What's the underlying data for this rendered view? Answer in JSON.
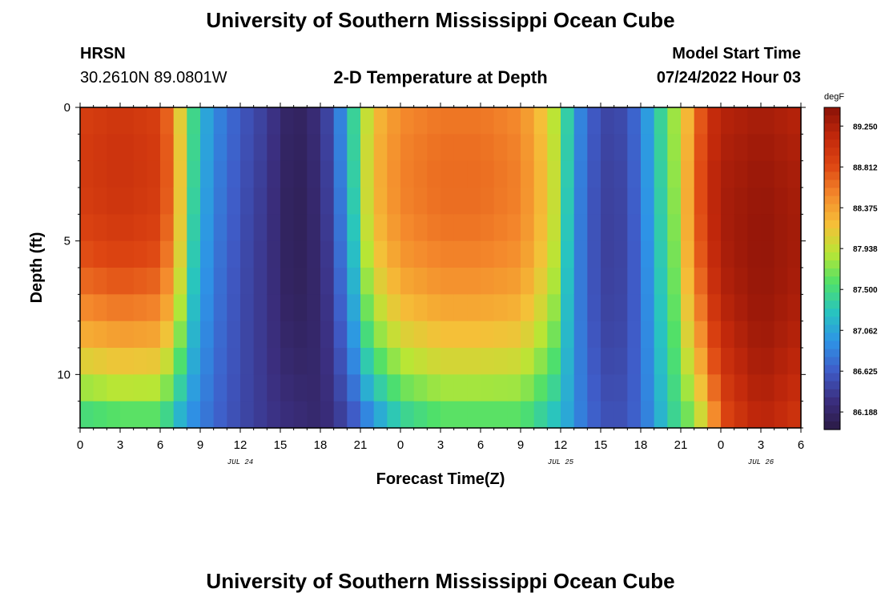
{
  "header": {
    "title": "University of Southern Mississippi Ocean Cube",
    "station": "HRSN",
    "coords": "30.2610N  89.0801W",
    "plot_title": "2-D Temperature at Depth",
    "model_label": "Model Start Time",
    "model_time": "07/24/2022 Hour 03"
  },
  "footer": {
    "title": "University of Southern Mississippi Ocean Cube"
  },
  "colors": {
    "scale": [
      "#2b1a45",
      "#3b2f80",
      "#3f5cc8",
      "#2e93e6",
      "#28c4c0",
      "#4fe06a",
      "#b8e635",
      "#f5c038",
      "#f4892c",
      "#de4612",
      "#c1280b",
      "#8a1208"
    ]
  },
  "chart_data": {
    "type": "heatmap",
    "title": "2-D Temperature at Depth",
    "xlabel": "Forecast Time(Z)",
    "ylabel": "Depth (ft)",
    "x_hours": [
      0,
      54
    ],
    "x_ticks": [
      {
        "h": 0,
        "label": "0"
      },
      {
        "h": 3,
        "label": "3"
      },
      {
        "h": 6,
        "label": "6"
      },
      {
        "h": 9,
        "label": "9"
      },
      {
        "h": 12,
        "label": "12"
      },
      {
        "h": 15,
        "label": "15"
      },
      {
        "h": 18,
        "label": "18"
      },
      {
        "h": 21,
        "label": "21"
      },
      {
        "h": 24,
        "label": "0"
      },
      {
        "h": 27,
        "label": "3"
      },
      {
        "h": 30,
        "label": "6"
      },
      {
        "h": 33,
        "label": "9"
      },
      {
        "h": 36,
        "label": "12"
      },
      {
        "h": 39,
        "label": "15"
      },
      {
        "h": 42,
        "label": "18"
      },
      {
        "h": 45,
        "label": "21"
      },
      {
        "h": 48,
        "label": "0"
      },
      {
        "h": 51,
        "label": "3"
      },
      {
        "h": 54,
        "label": "6"
      }
    ],
    "date_labels": [
      {
        "h": 12,
        "label": "JUL 24"
      },
      {
        "h": 36,
        "label": "JUL 25"
      },
      {
        "h": 51,
        "label": "JUL 26"
      }
    ],
    "ylim": [
      0,
      12
    ],
    "y_ticks": [
      {
        "v": 0,
        "label": "0"
      },
      {
        "v": 5,
        "label": "5"
      },
      {
        "v": 10,
        "label": "10"
      }
    ],
    "depth_levels": 12,
    "colorbar": {
      "unit": "degF",
      "min": 86.0,
      "max": 89.45,
      "labels": [
        "89.250",
        "88.812",
        "88.375",
        "87.938",
        "87.500",
        "87.062",
        "86.625",
        "86.188"
      ]
    },
    "surface_series_degF": [
      {
        "h": 0,
        "v": 88.9
      },
      {
        "h": 3,
        "v": 89.0
      },
      {
        "h": 6,
        "v": 88.9
      },
      {
        "h": 7,
        "v": 88.5
      },
      {
        "h": 8,
        "v": 87.7
      },
      {
        "h": 9,
        "v": 87.2
      },
      {
        "h": 10,
        "v": 86.9
      },
      {
        "h": 12,
        "v": 86.6
      },
      {
        "h": 14,
        "v": 86.4
      },
      {
        "h": 15,
        "v": 86.25
      },
      {
        "h": 16,
        "v": 86.1
      },
      {
        "h": 17,
        "v": 86.2
      },
      {
        "h": 18,
        "v": 86.3
      },
      {
        "h": 19,
        "v": 86.6
      },
      {
        "h": 20,
        "v": 87.1
      },
      {
        "h": 21,
        "v": 87.7
      },
      {
        "h": 22,
        "v": 88.2
      },
      {
        "h": 24,
        "v": 88.5
      },
      {
        "h": 27,
        "v": 88.6
      },
      {
        "h": 30,
        "v": 88.6
      },
      {
        "h": 33,
        "v": 88.5
      },
      {
        "h": 35,
        "v": 88.1
      },
      {
        "h": 36,
        "v": 87.7
      },
      {
        "h": 37,
        "v": 87.0
      },
      {
        "h": 38,
        "v": 86.7
      },
      {
        "h": 39,
        "v": 86.5
      },
      {
        "h": 40,
        "v": 86.45
      },
      {
        "h": 41,
        "v": 86.55
      },
      {
        "h": 42,
        "v": 86.8
      },
      {
        "h": 43,
        "v": 87.2
      },
      {
        "h": 44,
        "v": 87.6
      },
      {
        "h": 45,
        "v": 88.0
      },
      {
        "h": 46,
        "v": 88.5
      },
      {
        "h": 47,
        "v": 89.0
      },
      {
        "h": 48,
        "v": 89.2
      },
      {
        "h": 51,
        "v": 89.3
      },
      {
        "h": 54,
        "v": 89.2
      }
    ],
    "bottom_series_degF": [
      {
        "h": 0,
        "v": 87.5
      },
      {
        "h": 3,
        "v": 87.6
      },
      {
        "h": 6,
        "v": 87.6
      },
      {
        "h": 7,
        "v": 87.3
      },
      {
        "h": 8,
        "v": 87.0
      },
      {
        "h": 10,
        "v": 86.7
      },
      {
        "h": 12,
        "v": 86.5
      },
      {
        "h": 15,
        "v": 86.3
      },
      {
        "h": 18,
        "v": 86.2
      },
      {
        "h": 20,
        "v": 86.5
      },
      {
        "h": 22,
        "v": 87.0
      },
      {
        "h": 24,
        "v": 87.4
      },
      {
        "h": 27,
        "v": 87.6
      },
      {
        "h": 30,
        "v": 87.6
      },
      {
        "h": 33,
        "v": 87.6
      },
      {
        "h": 36,
        "v": 87.2
      },
      {
        "h": 38,
        "v": 86.7
      },
      {
        "h": 40,
        "v": 86.5
      },
      {
        "h": 42,
        "v": 86.7
      },
      {
        "h": 44,
        "v": 87.3
      },
      {
        "h": 46,
        "v": 87.8
      },
      {
        "h": 47,
        "v": 88.2
      },
      {
        "h": 48,
        "v": 88.8
      },
      {
        "h": 50,
        "v": 89.1
      },
      {
        "h": 51,
        "v": 89.2
      },
      {
        "h": 54,
        "v": 89.0
      }
    ]
  }
}
